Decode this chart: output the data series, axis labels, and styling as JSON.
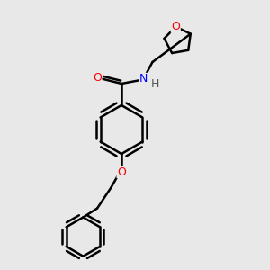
{
  "background_color": "#e8e8e8",
  "bond_color": "#000000",
  "bond_width": 1.8,
  "atom_colors": {
    "O": "#ff0000",
    "N": "#0000ff",
    "C": "#000000",
    "H": "#555555"
  },
  "font_size": 9,
  "figsize": [
    3.0,
    3.0
  ],
  "dpi": 100
}
